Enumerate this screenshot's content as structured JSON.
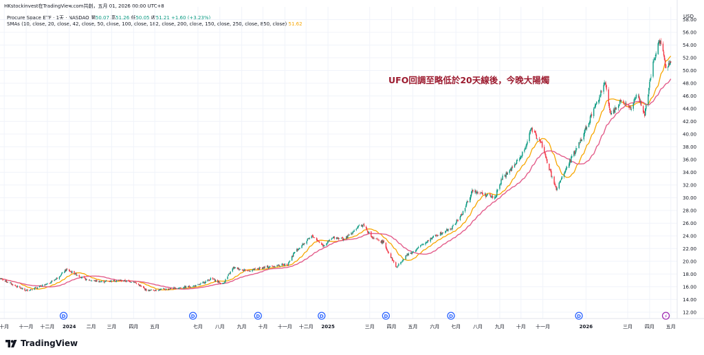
{
  "header": {
    "publisher_line": "HKstockinvest在TradingView.com共創，五月 01, 2026 00:00 UTC+8"
  },
  "legend": {
    "symbol": "Procure Space ETF · 1天 · NASDAQ",
    "open_label": "開",
    "open": "50.07",
    "high_label": "高",
    "high": "51.26",
    "low_label": "低",
    "low": "50.05",
    "close_label": "收",
    "close": "51.21",
    "change": "+1.60 (+3.23%)",
    "sma_label": "SMAs (10, close, 20, close, 42, close, 50, close, 100, close, 182, close, 200, close, 150, close, 250, close, 850, close)",
    "sma_value": "51.62"
  },
  "footer": {
    "brand": "TradingView"
  },
  "colors": {
    "up": "#089981",
    "down": "#f23645",
    "sma_fast": "#f7a600",
    "sma_slow": "#e35d8b",
    "annotation": "#9c1b2f",
    "dividend": "#2962ff",
    "split": "#9c27b0"
  },
  "chart_data": {
    "type": "candlestick",
    "currency": "USD",
    "annotation": "UFO回調至略低於20天線後，今晚大陽燭",
    "y_ticks": [
      12,
      14,
      16,
      18,
      20,
      22,
      24,
      26,
      28,
      30,
      32,
      34,
      36,
      38,
      40,
      42,
      44,
      46,
      48,
      50,
      52,
      54,
      56,
      58
    ],
    "ylim": [
      12,
      58
    ],
    "x_domain": [
      "2023-09-25",
      "2026-05-10"
    ],
    "x_ticks": [
      {
        "date": "2023-10-01",
        "label": "十月"
      },
      {
        "date": "2023-11-01",
        "label": "十一月"
      },
      {
        "date": "2023-12-01",
        "label": "十二月"
      },
      {
        "date": "2024-01-01",
        "label": "2024",
        "bold": true
      },
      {
        "date": "2024-02-01",
        "label": "二月"
      },
      {
        "date": "2024-03-01",
        "label": "三月"
      },
      {
        "date": "2024-04-01",
        "label": "四月"
      },
      {
        "date": "2024-05-01",
        "label": "五月"
      },
      {
        "date": "2024-07-01",
        "label": "七月"
      },
      {
        "date": "2024-08-01",
        "label": "八月"
      },
      {
        "date": "2024-09-01",
        "label": "九月"
      },
      {
        "date": "2024-10-01",
        "label": "十月"
      },
      {
        "date": "2024-11-01",
        "label": "十一月"
      },
      {
        "date": "2024-12-01",
        "label": "十二月"
      },
      {
        "date": "2025-01-01",
        "label": "2025",
        "bold": true
      },
      {
        "date": "2025-03-01",
        "label": "三月"
      },
      {
        "date": "2025-04-01",
        "label": "四月"
      },
      {
        "date": "2025-05-01",
        "label": "五月"
      },
      {
        "date": "2025-06-01",
        "label": "六月"
      },
      {
        "date": "2025-07-01",
        "label": "七月"
      },
      {
        "date": "2025-08-01",
        "label": "八月"
      },
      {
        "date": "2025-09-01",
        "label": "九月"
      },
      {
        "date": "2025-10-01",
        "label": "十月"
      },
      {
        "date": "2025-11-01",
        "label": "十一月"
      },
      {
        "date": "2026-01-01",
        "label": "2026",
        "bold": true
      },
      {
        "date": "2026-03-01",
        "label": "三月"
      },
      {
        "date": "2026-04-01",
        "label": "四月"
      },
      {
        "date": "2026-05-01",
        "label": "五月"
      }
    ],
    "events": [
      {
        "date": "2023-12-24",
        "type": "dividend",
        "label": "D"
      },
      {
        "date": "2024-06-24",
        "type": "dividend",
        "label": "D"
      },
      {
        "date": "2024-09-24",
        "type": "dividend",
        "label": "D"
      },
      {
        "date": "2024-12-23",
        "type": "dividend",
        "label": "D"
      },
      {
        "date": "2025-03-24",
        "type": "dividend",
        "label": "D"
      },
      {
        "date": "2025-06-24",
        "type": "dividend",
        "label": "D"
      },
      {
        "date": "2025-12-22",
        "type": "dividend",
        "label": "D"
      },
      {
        "date": "2026-04-24",
        "type": "split",
        "label": "⚡"
      }
    ],
    "price_path": [
      [
        "2023-09-25",
        17.3
      ],
      [
        "2023-10-10",
        16.5
      ],
      [
        "2023-10-31",
        15.4
      ],
      [
        "2023-11-15",
        15.8
      ],
      [
        "2023-12-01",
        16.4
      ],
      [
        "2023-12-15",
        17.4
      ],
      [
        "2023-12-28",
        18.7
      ],
      [
        "2024-01-10",
        18.0
      ],
      [
        "2024-01-25",
        17.1
      ],
      [
        "2024-02-15",
        16.8
      ],
      [
        "2024-03-10",
        17.0
      ],
      [
        "2024-04-01",
        16.8
      ],
      [
        "2024-04-20",
        15.4
      ],
      [
        "2024-05-15",
        15.6
      ],
      [
        "2024-06-10",
        15.9
      ],
      [
        "2024-07-01",
        16.2
      ],
      [
        "2024-07-20",
        17.3
      ],
      [
        "2024-08-05",
        16.4
      ],
      [
        "2024-08-20",
        19.0
      ],
      [
        "2024-09-10",
        18.5
      ],
      [
        "2024-10-01",
        19.0
      ],
      [
        "2024-10-20",
        19.3
      ],
      [
        "2024-11-05",
        19.6
      ],
      [
        "2024-11-15",
        21.5
      ],
      [
        "2024-11-30",
        23.0
      ],
      [
        "2024-12-10",
        24.0
      ],
      [
        "2024-12-25",
        22.5
      ],
      [
        "2025-01-10",
        23.8
      ],
      [
        "2025-01-25",
        23.5
      ],
      [
        "2025-02-10",
        25.2
      ],
      [
        "2025-02-20",
        25.8
      ],
      [
        "2025-03-05",
        23.6
      ],
      [
        "2025-03-20",
        23.0
      ],
      [
        "2025-04-08",
        19.0
      ],
      [
        "2025-04-20",
        20.8
      ],
      [
        "2025-05-05",
        21.8
      ],
      [
        "2025-05-25",
        23.5
      ],
      [
        "2025-06-10",
        24.5
      ],
      [
        "2025-06-25",
        25.2
      ],
      [
        "2025-07-10",
        27.5
      ],
      [
        "2025-07-25",
        31.2
      ],
      [
        "2025-08-10",
        30.5
      ],
      [
        "2025-08-25",
        30.0
      ],
      [
        "2025-09-05",
        33.2
      ],
      [
        "2025-09-20",
        34.8
      ],
      [
        "2025-10-05",
        37.2
      ],
      [
        "2025-10-15",
        40.8
      ],
      [
        "2025-10-30",
        38.5
      ],
      [
        "2025-11-10",
        34.5
      ],
      [
        "2025-11-20",
        31.2
      ],
      [
        "2025-12-05",
        34.8
      ],
      [
        "2025-12-20",
        38.0
      ],
      [
        "2026-01-05",
        42.0
      ],
      [
        "2026-01-18",
        45.5
      ],
      [
        "2026-01-28",
        48.0
      ],
      [
        "2026-02-05",
        43.0
      ],
      [
        "2026-02-20",
        45.5
      ],
      [
        "2026-03-05",
        44.0
      ],
      [
        "2026-03-15",
        46.2
      ],
      [
        "2026-03-25",
        43.0
      ],
      [
        "2026-04-05",
        50.5
      ],
      [
        "2026-04-16",
        55.2
      ],
      [
        "2026-04-24",
        50.2
      ],
      [
        "2026-05-01",
        51.2
      ]
    ]
  }
}
